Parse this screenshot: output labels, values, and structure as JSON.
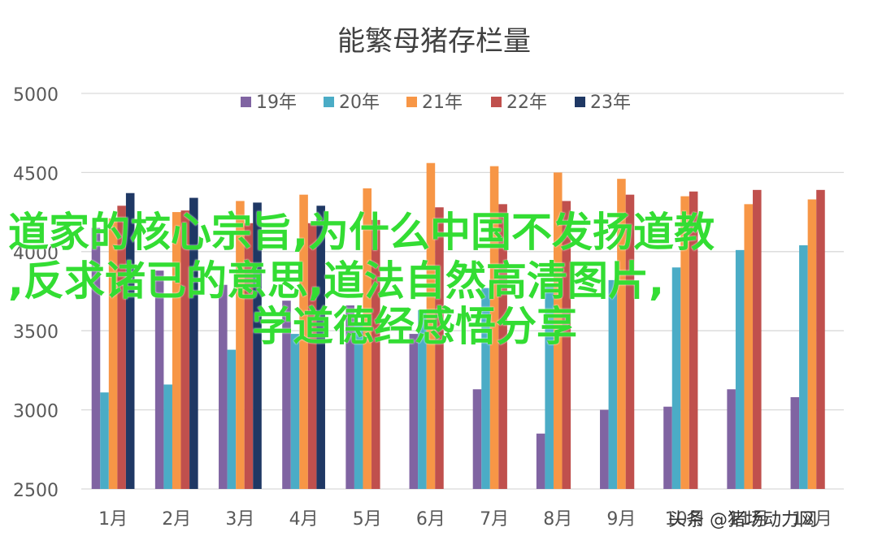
{
  "chart_data": {
    "type": "bar",
    "title": "能繁母猪存栏量",
    "categories": [
      "1月",
      "2月",
      "3月",
      "4月",
      "5月",
      "6月",
      "7月",
      "8月",
      "9月",
      "10月",
      "11月",
      "12月"
    ],
    "series": [
      {
        "name": "19年",
        "color": "#8064a2",
        "values": [
          4150,
          3880,
          3790,
          3690,
          3660,
          3480,
          3130,
          2850,
          3000,
          3020,
          3130,
          3080
        ]
      },
      {
        "name": "20年",
        "color": "#4bacc6",
        "values": [
          3110,
          3160,
          3380,
          3480,
          3550,
          3630,
          3770,
          3800,
          3820,
          3900,
          4010,
          4040
        ]
      },
      {
        "name": "21年",
        "color": "#f79646",
        "values": [
          4210,
          4250,
          4320,
          4360,
          4400,
          4560,
          4540,
          4500,
          4460,
          4350,
          4300,
          4330
        ]
      },
      {
        "name": "22年",
        "color": "#c0504d",
        "values": [
          4290,
          4260,
          4180,
          4180,
          4200,
          4280,
          4300,
          4320,
          4360,
          4380,
          4390,
          4390
        ]
      },
      {
        "name": "23年",
        "color": "#1f3864",
        "values": [
          4370,
          4340,
          4310,
          4290,
          null,
          null,
          null,
          null,
          null,
          null,
          null,
          null
        ]
      }
    ],
    "ylim": [
      2500,
      5000
    ],
    "yticks": [
      2500,
      3000,
      3500,
      4000,
      4500,
      5000
    ],
    "grid": true,
    "legend_position": "top-center"
  },
  "overlay": {
    "line1": "道家的核心宗旨,为什么中国不发扬道教",
    "line2": ",反求诸已的意思,道法自然高清图片,",
    "line3": "学道德经感悟分享"
  },
  "watermark": "头条 @猪场动力网"
}
